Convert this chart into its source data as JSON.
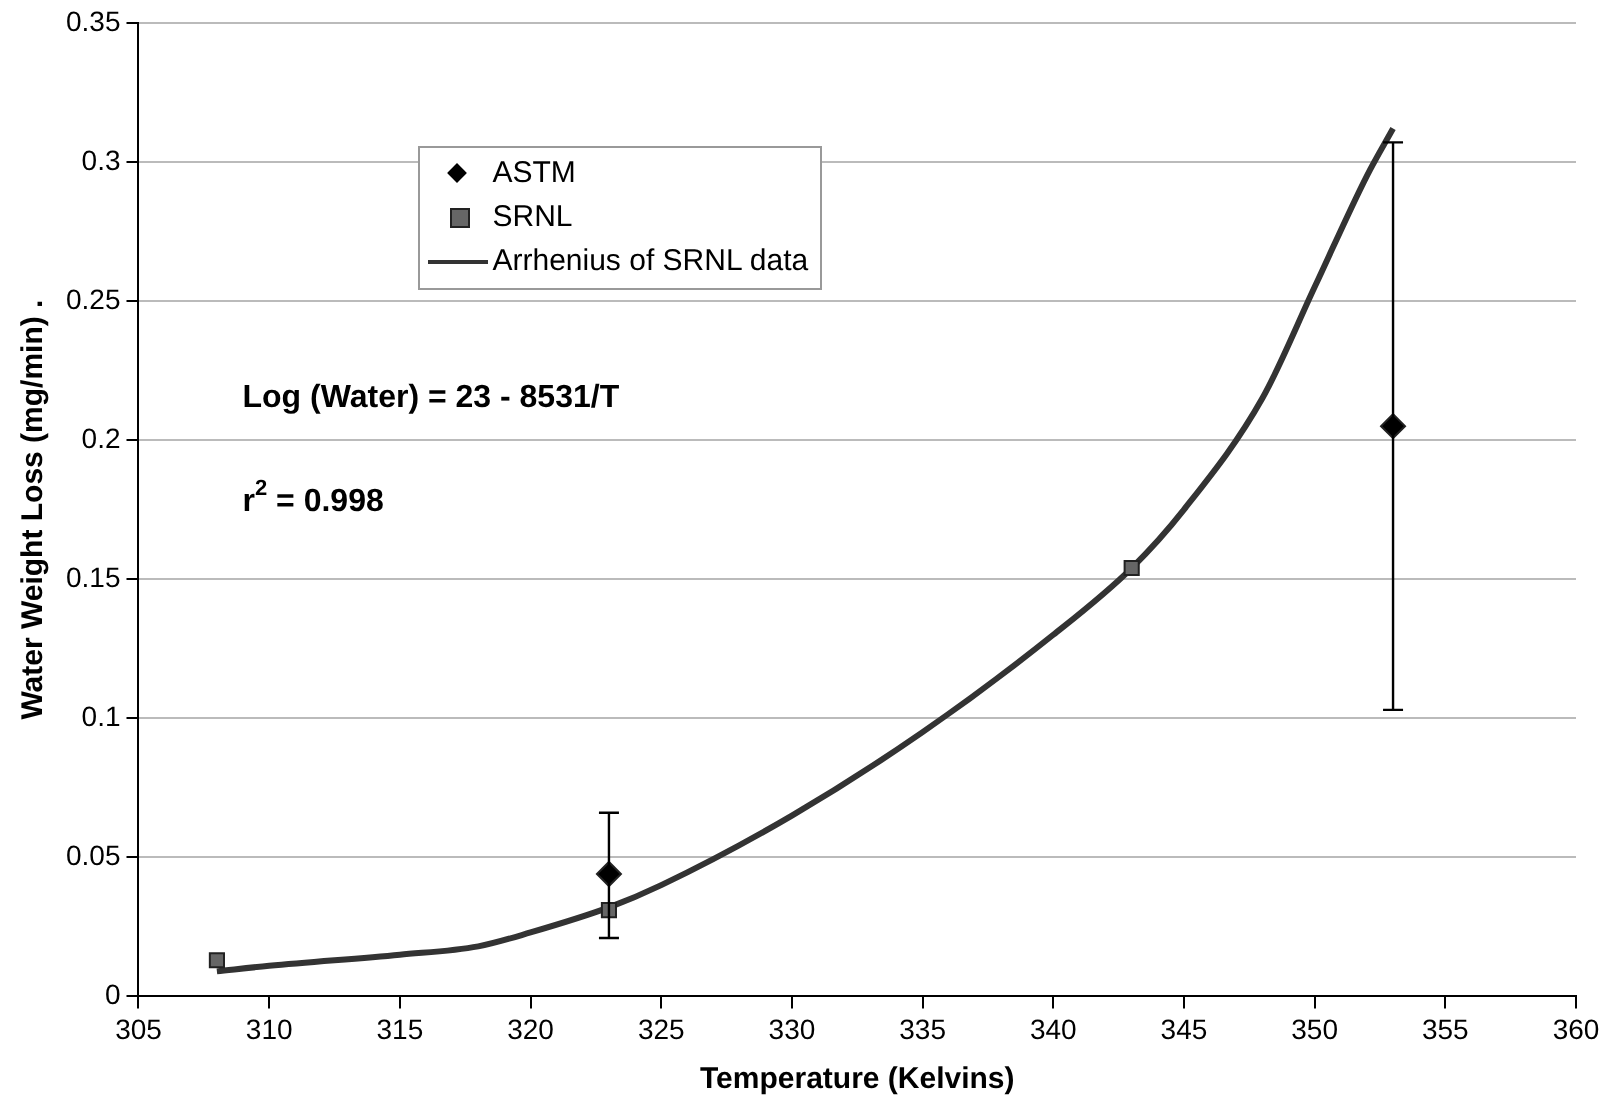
{
  "chart_data": {
    "type": "scatter",
    "xlabel": "Temperature (Kelvins)",
    "ylabel": "Water Weight Loss (mg/min) .",
    "xlim": [
      305,
      360
    ],
    "xticks": [
      305,
      310,
      315,
      320,
      325,
      330,
      335,
      340,
      345,
      350,
      355,
      360
    ],
    "ylim": [
      0,
      0.35
    ],
    "yticks": [
      0,
      0.05,
      0.1,
      0.15,
      0.2,
      0.25,
      0.3,
      0.35
    ],
    "grid": "y",
    "legend": "top left",
    "annotations": [
      "Log (Water) = 23 - 8531/T",
      "r$^{2}$ = 0.998"
    ],
    "series": [
      {
        "name": "ASTM",
        "marker": "diamond",
        "color": "#000000",
        "x": [
          323,
          353
        ],
        "values": [
          0.044,
          0.205
        ],
        "errors": [
          [
            0.021,
            0.066
          ],
          [
            0.103,
            0.307
          ]
        ]
      },
      {
        "name": "SRNL",
        "marker": "square",
        "color": "#666666",
        "x": [
          308,
          323,
          343
        ],
        "values": [
          0.013,
          0.031,
          0.154
        ]
      },
      {
        "name": "Arrhenius of SRNL data",
        "type": "line",
        "marker": "none",
        "color": "#333333",
        "x": [
          308,
          310,
          315,
          318,
          320,
          323,
          325,
          330,
          335,
          340,
          343,
          345,
          348,
          350,
          352,
          353
        ],
        "values": [
          0.009,
          0.011,
          0.015,
          0.018,
          0.023,
          0.032,
          0.04,
          0.065,
          0.095,
          0.13,
          0.154,
          0.175,
          0.215,
          0.255,
          0.295,
          0.312
        ]
      }
    ]
  }
}
